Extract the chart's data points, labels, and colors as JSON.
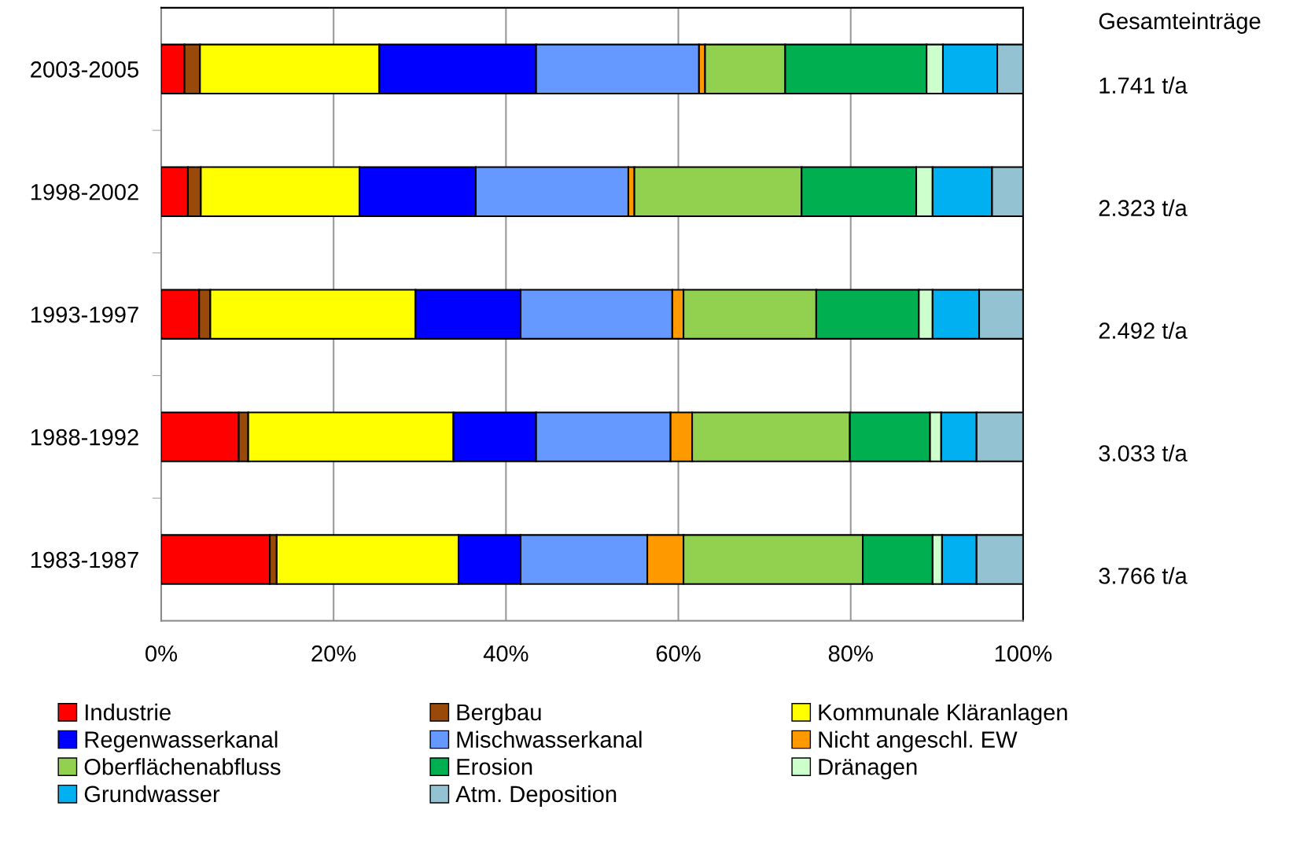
{
  "chart_data": {
    "type": "bar",
    "orientation": "horizontal",
    "stacked": true,
    "categories": [
      "2003-2005",
      "1998-2002",
      "1993-1997",
      "1988-1992",
      "1983-1987"
    ],
    "series": [
      {
        "name": "Industrie",
        "color": "#ff0000",
        "values": [
          2.7,
          3.1,
          4.4,
          9.0,
          12.6
        ]
      },
      {
        "name": "Bergbau",
        "color": "#994a0a",
        "values": [
          1.8,
          1.5,
          1.3,
          1.1,
          0.8
        ]
      },
      {
        "name": "Kommunale Kläranlagen",
        "color": "#ffff00",
        "values": [
          20.8,
          18.4,
          23.8,
          23.8,
          21.1
        ]
      },
      {
        "name": "Regenwasserkanal",
        "color": "#0000ff",
        "values": [
          18.2,
          13.5,
          12.2,
          9.6,
          7.2
        ]
      },
      {
        "name": "Mischwasserkanal",
        "color": "#6699ff",
        "values": [
          18.9,
          17.7,
          17.6,
          15.6,
          14.7
        ]
      },
      {
        "name": "Nicht angeschl. EW",
        "color": "#ff9900",
        "values": [
          0.7,
          0.7,
          1.3,
          2.5,
          4.2
        ]
      },
      {
        "name": "Oberflächenabfluss",
        "color": "#92d050",
        "values": [
          9.3,
          19.4,
          15.4,
          18.3,
          20.8
        ]
      },
      {
        "name": "Erosion",
        "color": "#00b050",
        "values": [
          16.4,
          13.3,
          11.9,
          9.3,
          8.1
        ]
      },
      {
        "name": "Dränagen",
        "color": "#ccffcc",
        "values": [
          1.9,
          1.9,
          1.6,
          1.3,
          1.1
        ]
      },
      {
        "name": "Grundwasser",
        "color": "#00b0f0",
        "values": [
          6.3,
          6.9,
          5.4,
          4.1,
          4.0
        ]
      },
      {
        "name": "Atm. Deposition",
        "color": "#93c3d3",
        "values": [
          3.0,
          3.6,
          5.1,
          5.4,
          5.4
        ]
      }
    ],
    "xlim": [
      0,
      100
    ],
    "xticks": [
      {
        "value": 0,
        "label": "0%"
      },
      {
        "value": 20,
        "label": "20%"
      },
      {
        "value": 40,
        "label": "40%"
      },
      {
        "value": 60,
        "label": "60%"
      },
      {
        "value": 80,
        "label": "80%"
      },
      {
        "value": 100,
        "label": "100%"
      }
    ],
    "grid": "x",
    "legend": "bottom",
    "annotations": [
      "Gesamteinträge",
      "1.741 t/a",
      "2.323 t/a",
      "2.492 t/a",
      "3.033 t/a",
      "3.766 t/a"
    ]
  }
}
